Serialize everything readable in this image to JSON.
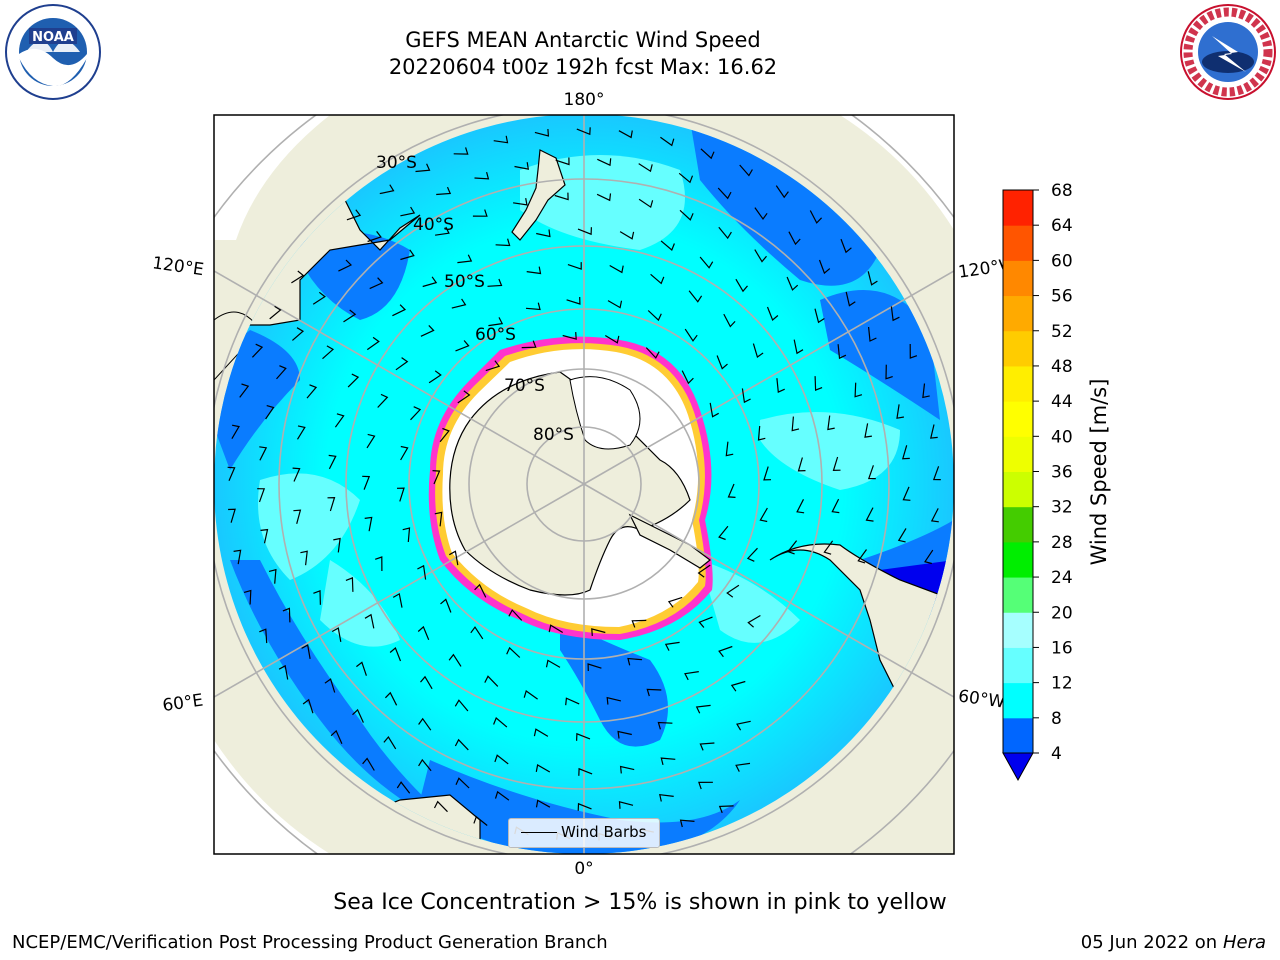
{
  "header": {
    "title_line1": "GEFS MEAN Antarctic Wind Speed",
    "title_line2": "20220604 t00z 192h fcst   Max: 16.62"
  },
  "logos": {
    "left": {
      "name": "NOAA",
      "ring_text": "NATIONAL OCEANIC AND ATMOSPHERIC ADMINISTRATION · U.S. DEPARTMENT OF COMMERCE",
      "color": "#1f3f8f"
    },
    "right": {
      "name": "NATIONAL WEATHER SERVICE",
      "color": "#c8102e"
    }
  },
  "chart_data": {
    "type": "heatmap",
    "projection": "south-polar-stereographic",
    "title": "GEFS MEAN Antarctic Wind Speed",
    "subtitle": "20220604 t00z 192h fcst   Max: 16.62",
    "variable": "Wind Speed [m/s]",
    "max_value": 16.62,
    "longitude_labels": [
      "180°",
      "120°E",
      "120°W",
      "60°E",
      "60°W",
      "0°"
    ],
    "latitude_labels": [
      "30°S",
      "40°S",
      "50°S",
      "60°S",
      "70°S",
      "80°S"
    ],
    "latitude_circles": [
      80,
      70,
      60,
      50,
      40,
      30
    ],
    "colorbar": {
      "label": "Wind Speed [m/s]",
      "ticks": [
        4,
        8,
        12,
        16,
        20,
        24,
        28,
        32,
        36,
        40,
        44,
        48,
        52,
        56,
        60,
        64,
        68
      ],
      "colors": [
        "#0066ff",
        "#00ffff",
        "#66ffff",
        "#a6ffff",
        "#55ff77",
        "#00ee00",
        "#44cc00",
        "#ccff00",
        "#eeff00",
        "#ffff00",
        "#ffee00",
        "#ffcc00",
        "#ffaa00",
        "#ff8800",
        "#ff5500",
        "#ff2200"
      ],
      "under_color": "#0000ee"
    },
    "legend": {
      "entries": [
        "Wind Barbs"
      ],
      "placement": "bottom-center"
    },
    "sea_ice_note": "Sea Ice Concentration > 15% is shown in pink to yellow"
  },
  "colors": {
    "land": "#eeeedc",
    "ocean_low": "#0a7cff",
    "ocean_mid": "#00ffff",
    "ocean_high": "#66ffff",
    "ice_edge_pink": "#ff33cc",
    "ice_edge_yellow": "#ffcc33",
    "grid": "#b0b0b0"
  },
  "footer": {
    "left": "NCEP/EMC/Verification Post Processing Product Generation Branch",
    "right_date": "05 Jun 2022 on",
    "right_machine": "Hera"
  }
}
